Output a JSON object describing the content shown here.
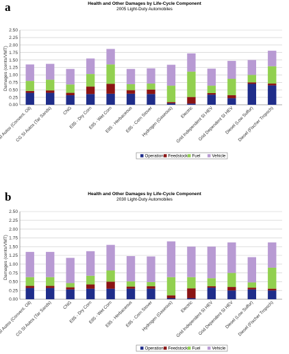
{
  "panels": [
    {
      "letter": "a",
      "legend_items": [
        {
          "label": "Operation",
          "color": "#1f2d8a"
        },
        {
          "label": "Feedstock",
          "color": "#8b1414"
        },
        {
          "label": "Fuel",
          "color": "#92d050"
        },
        {
          "label": "Vehicle",
          "color": "#b89ad3"
        }
      ]
    },
    {
      "letter": "b",
      "legend_items": [
        {
          "label": "Operation",
          "color": "#1f2d8a"
        },
        {
          "label": "Feedstock",
          "color": "#8b1414"
        },
        {
          "label": "Fuel",
          "color": "#92d050"
        },
        {
          "label": "Vehicle",
          "color": "#b89ad3"
        }
      ]
    }
  ],
  "chart_data": [
    {
      "type": "bar",
      "stacked": true,
      "title": "Health and Other Damages by Life-Cycle Component",
      "subtitle": "2005 Light-Duty Automobiles",
      "ylabel": "Damages (cents/VMT)",
      "xlabel": "",
      "ylim": [
        0,
        2.5
      ],
      "yticks": [
        "0.00",
        "0.25",
        "0.50",
        "0.75",
        "1.00",
        "1.25",
        "1.50",
        "1.75",
        "2.00",
        "2.25",
        "2.50"
      ],
      "grid": true,
      "legend": "bottom-right",
      "categories": [
        "CG SI Autos (Convent. Oil)",
        "CG SI Autos (Tar Sands)",
        "CNG",
        "E85 - Dry Corn",
        "E85 - Wet Corn",
        "E85 - Herbaceous",
        "E85 - Corn Stover",
        "Hydrogen (Gaseous)",
        "Electric",
        "Grid Independent SI HEV",
        "Grid Dependent SI HEV",
        "Diesel (Low Sulfur)",
        "Diesel (Fischer Tropsch)"
      ],
      "series": [
        {
          "name": "Operation",
          "color": "#1f2d8a",
          "values": [
            0.4,
            0.4,
            0.32,
            0.36,
            0.37,
            0.37,
            0.36,
            0.05,
            0.04,
            0.34,
            0.22,
            0.7,
            0.65
          ]
        },
        {
          "name": "Feedstock",
          "color": "#8b1414",
          "values": [
            0.06,
            0.08,
            0.08,
            0.25,
            0.33,
            0.12,
            0.15,
            0.04,
            0.22,
            0.05,
            0.1,
            0.05,
            0.06
          ]
        },
        {
          "name": "Fuel",
          "color": "#92d050",
          "values": [
            0.34,
            0.36,
            0.28,
            0.42,
            0.65,
            0.2,
            0.2,
            0.55,
            0.85,
            0.25,
            0.55,
            0.25,
            0.58
          ]
        },
        {
          "name": "Vehicle",
          "color": "#b89ad3",
          "values": [
            0.55,
            0.53,
            0.52,
            0.52,
            0.52,
            0.51,
            0.51,
            0.7,
            0.61,
            0.57,
            0.6,
            0.5,
            0.52
          ]
        }
      ]
    },
    {
      "type": "bar",
      "stacked": true,
      "title": "Health and Other Damages by Life-Cycle Component",
      "subtitle": "2030 Light-Duty Automobiles",
      "ylabel": "Damages (cents/VMT)",
      "xlabel": "",
      "ylim": [
        0,
        2.5
      ],
      "yticks": [
        "0.00",
        "0.25",
        "0.50",
        "0.75",
        "1.00",
        "1.25",
        "1.50",
        "1.75",
        "2.00",
        "2.25",
        "2.50"
      ],
      "grid": true,
      "legend": "bottom-right",
      "categories": [
        "CG SI Autos (Convent. Oil)",
        "CG SI Autos (Tar Sands)",
        "CNG",
        "E85 - Dry Corn",
        "E85 - Wet Corn",
        "E85 - Herbaceous",
        "E85 - Corn Stover",
        "Hydrogen (Gaseous)",
        "Electric",
        "Grid Independent SI HEV",
        "Grid Dependent SI HEV",
        "Diesel (Low Sulfur)",
        "Diesel (Fischer Tropsch)"
      ],
      "series": [
        {
          "name": "Operation",
          "color": "#1f2d8a",
          "values": [
            0.32,
            0.32,
            0.28,
            0.3,
            0.3,
            0.3,
            0.3,
            0.03,
            0.03,
            0.33,
            0.25,
            0.28,
            0.25
          ]
        },
        {
          "name": "Feedstock",
          "color": "#8b1414",
          "values": [
            0.06,
            0.06,
            0.06,
            0.12,
            0.2,
            0.06,
            0.07,
            0.08,
            0.28,
            0.04,
            0.1,
            0.05,
            0.05
          ]
        },
        {
          "name": "Fuel",
          "color": "#92d050",
          "values": [
            0.25,
            0.25,
            0.12,
            0.25,
            0.32,
            0.15,
            0.12,
            0.52,
            0.32,
            0.23,
            0.4,
            0.15,
            0.6
          ]
        },
        {
          "name": "Vehicle",
          "color": "#b89ad3",
          "values": [
            0.72,
            0.72,
            0.72,
            0.7,
            0.73,
            0.72,
            0.73,
            1.02,
            0.87,
            0.9,
            0.87,
            0.72,
            0.72
          ]
        }
      ]
    }
  ]
}
